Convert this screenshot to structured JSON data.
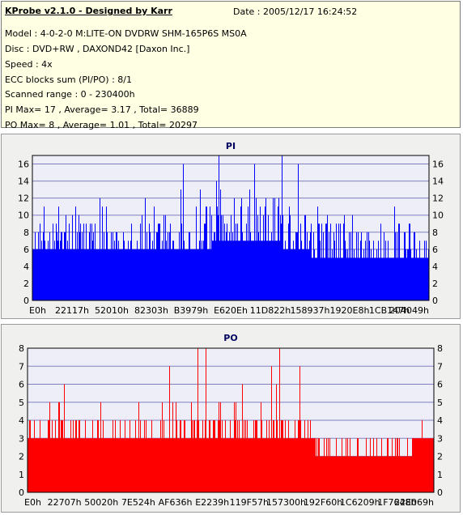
{
  "header": {
    "title": "KProbe v2.1.0 - Designed by Karr",
    "date": "Date : 2005/12/17 16:24:52"
  },
  "info_lines": [
    "Model : 4-0-2-0 M:LITE-ON DVDRW SHM-165P6S MS0A",
    "Disc : DVD+RW , DAXOND42 [Daxon Inc.]",
    "Speed : 4x",
    "ECC blocks sum (PI/PO) : 8/1",
    "Scanned range : 0 - 230400h",
    "PI Max= 17 , Average= 3.17 , Total= 36889",
    "PO Max= 8 , Average= 1.01 , Total= 20297"
  ],
  "colors": {
    "pi_bar": "#0000ff",
    "po_bar": "#ff0000",
    "plot_bg": "#eeeef8",
    "info_bg": "#ffffe3",
    "panel_bg": "#f0f0ee"
  },
  "chart_data": [
    {
      "type": "bar",
      "title": "PI",
      "ylim": [
        0,
        17
      ],
      "yticks": [
        0,
        2,
        4,
        6,
        8,
        10,
        12,
        14,
        16
      ],
      "xticks": [
        "E0h",
        "22117h",
        "52010h",
        "82303h",
        "B3979h",
        "E620Eh",
        "11D822h",
        "158937h",
        "1920E8h",
        "1CB147h",
        "204049h"
      ],
      "grid": true,
      "max": 17,
      "average": 3.17,
      "total": 36889,
      "profile": [
        {
          "x": 0.0,
          "base": 6,
          "peak": 10
        },
        {
          "x": 0.05,
          "base": 6,
          "peak": 12
        },
        {
          "x": 0.2,
          "base": 6,
          "peak": 12
        },
        {
          "x": 0.3,
          "base": 6,
          "peak": 13
        },
        {
          "x": 0.4,
          "base": 6,
          "peak": 15
        },
        {
          "x": 0.5,
          "base": 7,
          "peak": 15
        },
        {
          "x": 0.6,
          "base": 7,
          "peak": 16
        },
        {
          "x": 0.65,
          "base": 6,
          "peak": 14
        },
        {
          "x": 0.75,
          "base": 5,
          "peak": 12
        },
        {
          "x": 0.85,
          "base": 5,
          "peak": 10
        },
        {
          "x": 0.95,
          "base": 5,
          "peak": 12
        },
        {
          "x": 1.0,
          "base": 5,
          "peak": 10
        }
      ],
      "spikes": [
        {
          "x": 0.38,
          "value": 16
        },
        {
          "x": 0.47,
          "value": 17
        },
        {
          "x": 0.56,
          "value": 16
        },
        {
          "x": 0.63,
          "value": 17
        },
        {
          "x": 0.67,
          "value": 16
        }
      ]
    },
    {
      "type": "bar",
      "title": "PO",
      "ylim": [
        0,
        8
      ],
      "yticks": [
        0,
        1,
        2,
        3,
        4,
        5,
        6,
        7,
        8
      ],
      "xticks": [
        "E0h",
        "22707h",
        "50020h",
        "7E524h",
        "AF636h",
        "E2239h",
        "119F57h",
        "157300h",
        "192F60h",
        "1C6209h",
        "1F7648h",
        "22E069h"
      ],
      "grid": true,
      "max": 8,
      "average": 1.01,
      "total": 20297,
      "profile": [
        {
          "x": 0.0,
          "base": 3,
          "peak": 5
        },
        {
          "x": 0.15,
          "base": 3,
          "peak": 5
        },
        {
          "x": 0.35,
          "base": 3,
          "peak": 5
        },
        {
          "x": 0.55,
          "base": 3,
          "peak": 6
        },
        {
          "x": 0.7,
          "base": 3,
          "peak": 5
        },
        {
          "x": 0.72,
          "base": 2,
          "peak": 4
        },
        {
          "x": 0.8,
          "base": 2,
          "peak": 3
        },
        {
          "x": 0.9,
          "base": 2,
          "peak": 4
        },
        {
          "x": 1.0,
          "base": 3,
          "peak": 4
        }
      ],
      "spikes": [
        {
          "x": 0.09,
          "value": 6
        },
        {
          "x": 0.35,
          "value": 7
        },
        {
          "x": 0.42,
          "value": 8
        },
        {
          "x": 0.44,
          "value": 8
        },
        {
          "x": 0.6,
          "value": 7
        },
        {
          "x": 0.62,
          "value": 8
        },
        {
          "x": 0.67,
          "value": 7
        }
      ]
    }
  ]
}
